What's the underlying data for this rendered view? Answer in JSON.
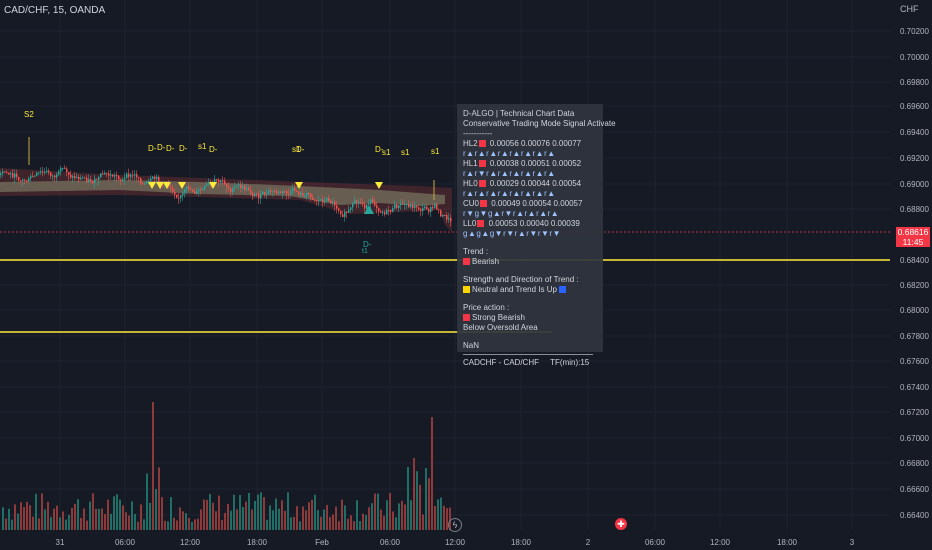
{
  "header": {
    "symbol_line": "CAD/CHF, 15, OANDA",
    "currency": "CHF"
  },
  "price_axis": {
    "ticks": [
      "0.70200",
      "0.70000",
      "0.69800",
      "0.69600",
      "0.69400",
      "0.69200",
      "0.69000",
      "0.68800",
      "0.68400",
      "0.68200",
      "0.68000",
      "0.67800",
      "0.67600",
      "0.67400",
      "0.67200",
      "0.67000",
      "0.66800",
      "0.66600",
      "0.66400"
    ],
    "current_price": "0.68616",
    "countdown": "11:45"
  },
  "time_axis": {
    "ticks": [
      "31",
      "06:00",
      "12:00",
      "18:00",
      "Feb",
      "06:00",
      "12:00",
      "18:00",
      "2",
      "06:00",
      "12:00",
      "18:00",
      "3"
    ]
  },
  "chart_markers": {
    "s2": "S2",
    "d_labels": [
      "D-",
      "D-",
      "D-",
      "D-",
      "D-",
      "D-",
      "D-"
    ],
    "s1_labels": [
      "s1",
      "s1",
      "s1",
      "s1",
      "s1"
    ],
    "bottom_marker_top": "D-",
    "bottom_marker_bottom": "t1"
  },
  "panel": {
    "title": "D-ALGO | Technical Chart Data",
    "subtitle": "Conservative Trading Mode Signal Activate",
    "dashes": "-----------",
    "levels": [
      {
        "name": "HL2",
        "values": "0.00056  0.00076  0.00077",
        "signals": "r▲r▲r▲r▲r▲r▲r▲r▲"
      },
      {
        "name": "HL1",
        "values": "0.00038  0.00051  0.00052",
        "signals": "r▲r▼r▲r▲r▲r▲r▲r▲"
      },
      {
        "name": "HL0",
        "values": "0.00029  0.00044  0.00054",
        "signals": "r▲r▲r▲r▲r▲r▲r▲r▲"
      },
      {
        "name": "CU0",
        "values": "0.00049  0.00054  0.00057",
        "signals": "r▼g▼g▲r▼r▲r▲r▲r▲"
      },
      {
        "name": "LL0",
        "values": "0.00053  0.00040  0.00039",
        "signals": "g▲g▲g▼r▼r▲r▼r▼r▼"
      }
    ],
    "trend_label": "Trend :",
    "trend_value": "Bearish",
    "strength_label": "Strength and Direction of Trend :",
    "strength_value": "Neutral and Trend Is Up",
    "price_action_label": "Price action :",
    "price_action_value": "Strong Bearish",
    "oversold": "Below Oversold Area",
    "nan": "NaN",
    "footer_symbol": "CADCHF - CAD/CHF",
    "footer_tf": "TF(min):15"
  },
  "colors": {
    "background": "#161a25",
    "bull": "#26a69a",
    "bear": "#ef5350",
    "level_line": "#ffeb3b",
    "price_tag": "#f23645"
  }
}
